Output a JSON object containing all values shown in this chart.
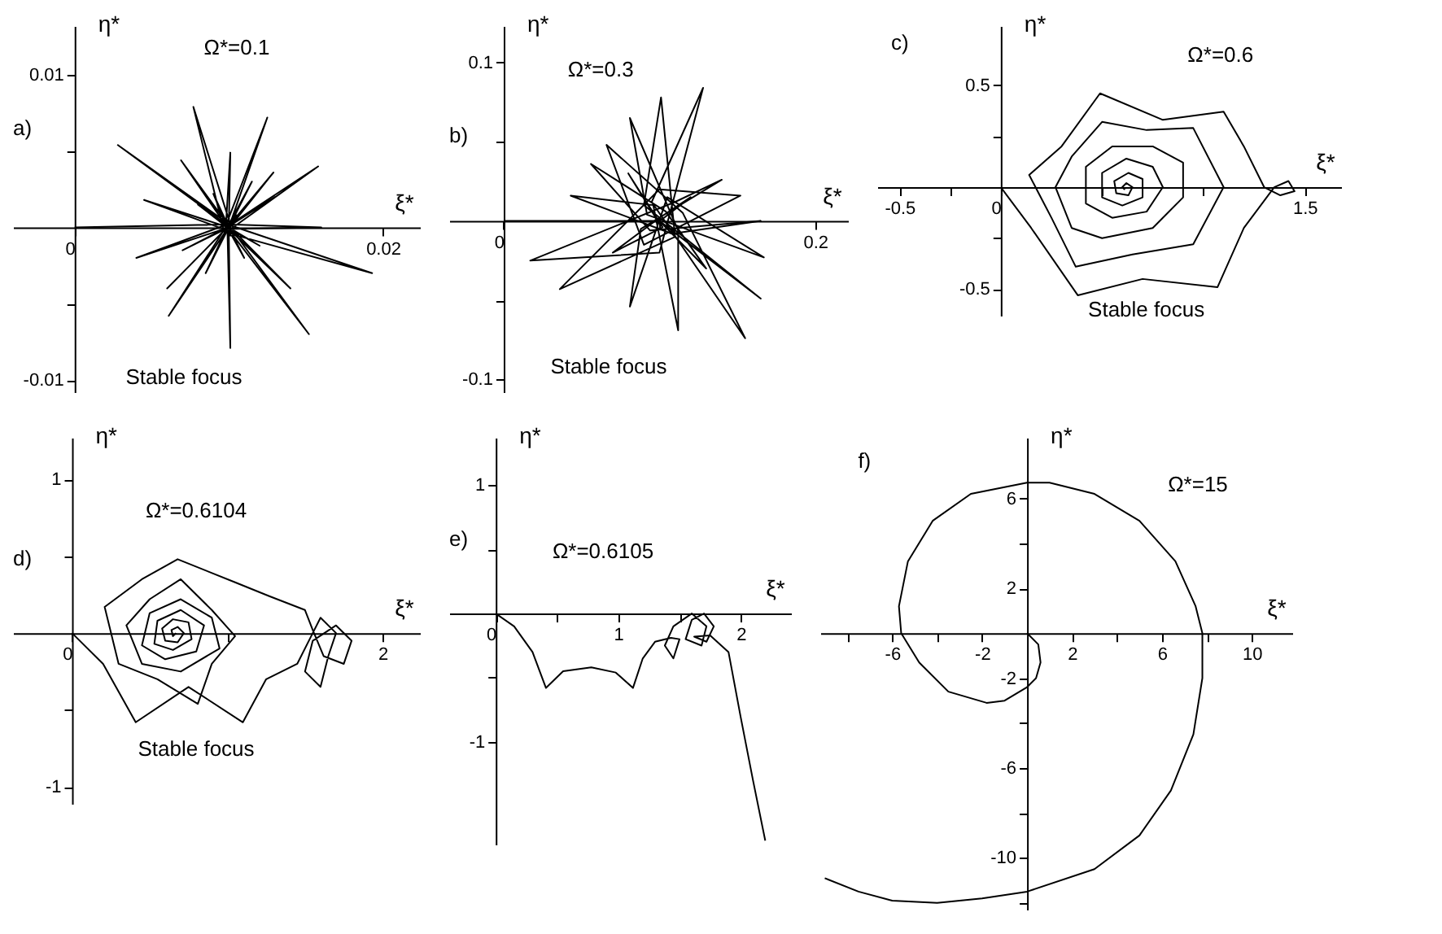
{
  "chart_data": [
    {
      "type": "line",
      "title": "Ω*=0.1",
      "xlabel": "ξ*",
      "ylabel": "η*",
      "annotations": [
        "a)",
        "Stable focus"
      ],
      "xlim": [
        -0.004,
        0.0224
      ],
      "ylim": [
        -0.0108,
        0.0132
      ],
      "xticks": [
        0,
        {
          "value": 0.01,
          "label": null
        },
        0.02
      ],
      "yticks": [
        0.01,
        {
          "value": 0.005,
          "label": null
        },
        {
          "value": -0.005,
          "label": null
        },
        -0.01
      ],
      "series": [
        {
          "color": "#000000",
          "x": [
            0,
            0.0099,
            0.0193,
            0.0097,
            0.0077,
            0.0101,
            0.0061,
            0.0098,
            0.0158,
            0.01,
            0.0101,
            0.0099,
            0.0028,
            0.0101,
            0.0152,
            0.0098,
            0.0125,
            0.01,
            0.004,
            0.0099,
            0.016,
            0.0098,
            0.0101,
            0.01,
            0.0045,
            0.0099,
            0.0129,
            0.01,
            0.0069,
            0.0099,
            0.014,
            0.01,
            0.006,
            0.0099,
            0.013,
            0.0099,
            0.007,
            0.01,
            0.0115,
            0.0099,
            0.0085,
            0.01,
            0.012,
            0.0099,
            0.008,
            0.01,
            0.011,
            0.0099,
            0.009,
            0.01,
            0.0105,
            0.0099
          ],
          "values": [
            0,
            0.0002,
            -0.003,
            -0.0003,
            0.0079,
            0.0002,
            -0.0058,
            0,
            0.004,
            -0.0002,
            -0.0079,
            0.0003,
            0.0054,
            0,
            -0.007,
            0.0001,
            0.0072,
            0,
            -0.002,
            0.0002,
            0,
            -0.0001,
            0.0049,
            0,
            0.0018,
            -0.0002,
            0.0036,
            0.0001,
            0.0044,
            0,
            -0.004,
            0.0001,
            -0.004,
            0,
            0.002,
            0,
            -0.0015,
            0,
            0.003,
            0,
            -0.003,
            0,
            -0.0012,
            0,
            0.0015,
            0,
            -0.002,
            0,
            0.0022,
            0,
            0.0008,
            0
          ]
        }
      ]
    },
    {
      "type": "line",
      "title": "Ω*=0.3",
      "xlabel": "ξ*",
      "ylabel": "η*",
      "annotations": [
        "b)",
        "Stable focus"
      ],
      "xlim": [
        -0.035,
        0.221
      ],
      "ylim": [
        -0.108,
        0.123
      ],
      "xticks": [
        0,
        {
          "value": 0.1,
          "label": null
        },
        0.2
      ],
      "yticks": [
        0.1,
        {
          "value": 0.05,
          "label": null
        },
        {
          "value": -0.05,
          "label": null
        },
        -0.1
      ],
      "series": [
        {
          "color": "#000000",
          "x": [
            0,
            0.1,
            0.165,
            0.09,
            0.101,
            0.11,
            0.036,
            0.1,
            0.152,
            0.09,
            0.066,
            0.115,
            0.155,
            0.095,
            0.128,
            0.1,
            0.017,
            0.11,
            0.14,
            0.088,
            0.081,
            0.105,
            0.167,
            0.092,
            0.081,
            0.112,
            0.112,
            0.096,
            0.043,
            0.108,
            0.165,
            0.094,
            0.056,
            0.104,
            0.13,
            0.097,
            0.08,
            0.102,
            0.07,
            0.1,
            0.12,
            0.099,
            0.1
          ],
          "values": [
            0,
            0,
            -0.049,
            0.01,
            0.078,
            -0.01,
            -0.043,
            0.02,
            0.016,
            -0.015,
            0.048,
            0.005,
            -0.074,
            0.012,
            0.084,
            -0.02,
            -0.025,
            0.012,
            0.026,
            -0.005,
            -0.054,
            0.015,
            -0.023,
            0.004,
            0.065,
            -0.006,
            -0.069,
            0.01,
            0.016,
            -0.008,
            0,
            -0.006,
            0.036,
            0.006,
            -0.03,
            0.003,
            0.03,
            -0.004,
            -0.02,
            0.002,
            0.015,
            -0.001,
            0
          ]
        }
      ]
    },
    {
      "type": "line",
      "title": "Ω*=0.6",
      "xlabel": "ξ*",
      "ylabel": "η*",
      "annotations": [
        "c)",
        "Stable focus"
      ],
      "xlim": [
        -0.61,
        1.68
      ],
      "ylim": [
        -0.63,
        0.79
      ],
      "xticks": [
        -0.5,
        {
          "value": -0.25,
          "label": null
        },
        0,
        {
          "value": 0.5,
          "label": null
        },
        {
          "value": 1,
          "label": null
        },
        1.5
      ],
      "yticks": [
        0.5,
        {
          "value": 0.25,
          "label": null
        },
        {
          "value": -0.25,
          "label": null
        },
        -0.5
      ],
      "series": [
        {
          "color": "#000000",
          "x": [
            0,
            0.15,
            0.38,
            0.7,
            1.07,
            1.2,
            1.35,
            1.42,
            1.45,
            1.38,
            1.3,
            1.2,
            1.1,
            0.8,
            0.49,
            0.3,
            0.14,
            0.25,
            0.37,
            0.65,
            0.95,
            1.1,
            0.95,
            0.72,
            0.5,
            0.35,
            0.27,
            0.35,
            0.5,
            0.75,
            0.9,
            0.9,
            0.75,
            0.55,
            0.42,
            0.42,
            0.55,
            0.72,
            0.8,
            0.75,
            0.62,
            0.5,
            0.5,
            0.6,
            0.7,
            0.7,
            0.63,
            0.56,
            0.57,
            0.63,
            0.65,
            0.62,
            0.6,
            0.61,
            0.61
          ],
          "values": [
            0,
            -0.2,
            -0.53,
            -0.45,
            -0.49,
            -0.2,
            0,
            0.03,
            -0.02,
            -0.04,
            0,
            0.2,
            0.37,
            0.33,
            0.46,
            0.2,
            0.06,
            -0.15,
            -0.39,
            -0.33,
            -0.28,
            0,
            0.29,
            0.28,
            0.32,
            0.15,
            0,
            -0.2,
            -0.25,
            -0.2,
            -0.05,
            0.12,
            0.2,
            0.2,
            0.1,
            -0.08,
            -0.15,
            -0.12,
            0,
            0.1,
            0.14,
            0.07,
            -0.05,
            -0.09,
            -0.05,
            0.04,
            0.07,
            0.03,
            -0.03,
            -0.04,
            0,
            0.02,
            0,
            -0.01,
            0
          ]
        }
      ]
    },
    {
      "type": "line",
      "title": "Ω*=0.6104",
      "xlabel": "ξ*",
      "ylabel": "η*",
      "annotations": [
        "d)",
        "Stable focus"
      ],
      "xlim": [
        -0.38,
        2.24
      ],
      "ylim": [
        -1.11,
        1.27
      ],
      "xticks": [
        0,
        {
          "value": 1,
          "label": null
        },
        2
      ],
      "yticks": [
        1,
        {
          "value": 0.5,
          "label": null
        },
        {
          "value": -0.5,
          "label": null
        },
        -1
      ],
      "series": [
        {
          "color": "#000000",
          "x": [
            0,
            0.2,
            0.41,
            0.75,
            1.1,
            1.25,
            1.45,
            1.55,
            1.6,
            1.7,
            1.65,
            1.6,
            1.5,
            1.55,
            1.7,
            1.8,
            1.75,
            1.62,
            1.55,
            1.5,
            1.27,
            1.05,
            0.68,
            0.45,
            0.21,
            0.3,
            0.55,
            0.81,
            0.9,
            1.05,
            0.9,
            0.7,
            0.5,
            0.35,
            0.45,
            0.7,
            0.95,
            0.9,
            0.7,
            0.5,
            0.45,
            0.6,
            0.8,
            0.85,
            0.7,
            0.55,
            0.53,
            0.65,
            0.77,
            0.75,
            0.65,
            0.58,
            0.6,
            0.68,
            0.72,
            0.68,
            0.64,
            0.65,
            0.67
          ],
          "values": [
            0,
            -0.2,
            -0.58,
            -0.35,
            -0.58,
            -0.3,
            -0.2,
            0,
            0.1,
            0,
            -0.15,
            -0.35,
            -0.25,
            -0.05,
            0.05,
            -0.05,
            -0.2,
            -0.15,
            0.02,
            0.15,
            0.24,
            0.33,
            0.48,
            0.35,
            0.17,
            -0.2,
            -0.3,
            -0.46,
            -0.2,
            -0.02,
            0.15,
            0.35,
            0.22,
            0.05,
            -0.2,
            -0.25,
            -0.1,
            0.1,
            0.22,
            0.13,
            -0.08,
            -0.17,
            -0.12,
            0.05,
            0.15,
            0.08,
            -0.07,
            -0.11,
            -0.04,
            0.07,
            0.09,
            0.03,
            -0.05,
            -0.06,
            0,
            0.04,
            0.02,
            -0.02,
            0
          ]
        }
      ]
    },
    {
      "type": "line",
      "title": "Ω*=0.6105",
      "xlabel": "ξ*",
      "ylabel": "η*",
      "annotations": [
        "e)"
      ],
      "xlim": [
        -0.38,
        2.41
      ],
      "ylim": [
        -1.8,
        1.37
      ],
      "xticks": [
        0,
        {
          "value": 0.5,
          "label": null
        },
        1,
        {
          "value": 1.5,
          "label": null
        },
        2
      ],
      "yticks": [
        1,
        {
          "value": 0.5,
          "label": null
        },
        {
          "value": -0.5,
          "label": null
        },
        -1
      ],
      "series": [
        {
          "color": "#000000",
          "x": [
            0,
            0.15,
            0.3,
            0.41,
            0.55,
            0.78,
            0.98,
            1.12,
            1.2,
            1.3,
            1.43,
            1.5,
            1.45,
            1.38,
            1.45,
            1.6,
            1.72,
            1.68,
            1.55,
            1.6,
            1.7,
            1.78,
            1.72,
            1.62,
            1.75,
            1.9,
            2.0,
            2.1,
            2.2
          ],
          "values": [
            0,
            -0.1,
            -0.3,
            -0.58,
            -0.45,
            -0.42,
            -0.46,
            -0.58,
            -0.35,
            -0.22,
            -0.19,
            -0.2,
            -0.35,
            -0.25,
            -0.1,
            0,
            -0.1,
            -0.25,
            -0.2,
            -0.05,
            0,
            -0.1,
            -0.22,
            -0.18,
            -0.17,
            -0.3,
            -0.81,
            -1.3,
            -1.77
          ]
        }
      ]
    },
    {
      "type": "line",
      "title": "Ω*=15",
      "xlabel": "ξ*",
      "ylabel": "η*",
      "annotations": [
        "f)"
      ],
      "xlim": [
        -9.2,
        11.8
      ],
      "ylim": [
        -12.3,
        8.7
      ],
      "xticks": [
        {
          "value": -8,
          "label": null
        },
        -6,
        {
          "value": -4,
          "label": null
        },
        -2,
        2,
        {
          "value": 4,
          "label": null
        },
        6,
        {
          "value": 8,
          "label": null
        },
        10
      ],
      "yticks": [
        6,
        {
          "value": 4,
          "label": null
        },
        2,
        -2,
        {
          "value": -4,
          "label": null
        },
        -6,
        {
          "value": -8,
          "label": null
        },
        -10,
        {
          "value": -12,
          "label": null
        }
      ],
      "series": [
        {
          "color": "#000000",
          "x": [
            0,
            0.5,
            0.6,
            0.4,
            0,
            -1,
            -1.8,
            -3.5,
            -4.8,
            -5.6,
            -5.7,
            -5.3,
            -4.2,
            -2.5,
            0,
            1,
            3,
            5,
            6.6,
            7.5,
            7.8,
            7.8,
            7.4,
            6.4,
            5,
            3,
            0,
            -2,
            -4,
            -6,
            -7.5,
            -9
          ],
          "values": [
            0,
            -0.5,
            -1.3,
            -2.0,
            -2.4,
            -3.0,
            -3.1,
            -2.6,
            -1.3,
            0,
            1.2,
            3.2,
            5.0,
            6.2,
            6.7,
            6.7,
            6.2,
            5,
            3.2,
            1.2,
            0,
            -2,
            -4.5,
            -7,
            -9,
            -10.5,
            -11.5,
            -11.8,
            -12.0,
            -11.9,
            -11.5,
            -10.9
          ]
        }
      ]
    }
  ]
}
